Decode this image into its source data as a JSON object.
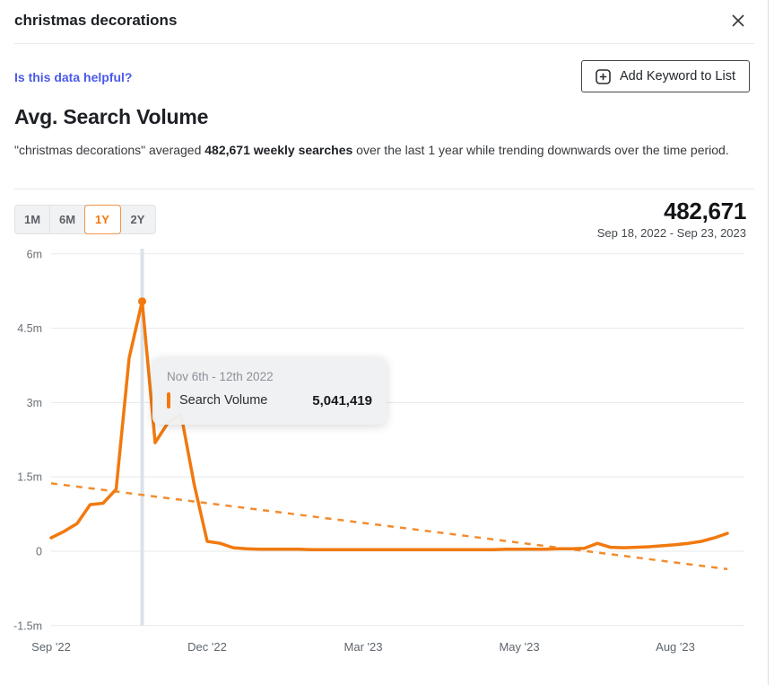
{
  "header": {
    "title": "christmas decorations",
    "close_icon": "✕"
  },
  "toolbar": {
    "helpful_link": "Is this data helpful?",
    "add_keyword_label": "Add Keyword to List"
  },
  "section": {
    "heading": "Avg. Search Volume",
    "desc_pre": "\"christmas decorations\" averaged ",
    "desc_bold": "482,671 weekly searches",
    "desc_post": " over the last 1 year while trending downwards over the time period."
  },
  "controls": {
    "ranges": [
      "1M",
      "6M",
      "1Y",
      "2Y"
    ],
    "selected_range": "1Y",
    "avg_value": "482,671",
    "date_range": "Sep 18, 2022 - Sep 23, 2023"
  },
  "tooltip": {
    "title": "Nov 6th - 12th 2022",
    "series_label": "Search Volume",
    "value": "5,041,419"
  },
  "chart_data": {
    "type": "line",
    "title": "Avg. Search Volume",
    "x_start_label": "Sep 18, 2022",
    "x_end_label": "Sep 23, 2023",
    "series": [
      {
        "name": "Search Volume",
        "unit": "millions of weekly searches",
        "values": [
          0.27,
          0.4,
          0.56,
          0.94,
          0.97,
          1.25,
          3.9,
          5.041419,
          2.19,
          2.6,
          2.75,
          1.35,
          0.2,
          0.16,
          0.07,
          0.05,
          0.04,
          0.04,
          0.04,
          0.04,
          0.03,
          0.03,
          0.03,
          0.03,
          0.03,
          0.03,
          0.03,
          0.03,
          0.03,
          0.03,
          0.03,
          0.03,
          0.03,
          0.03,
          0.03,
          0.04,
          0.04,
          0.04,
          0.04,
          0.05,
          0.05,
          0.06,
          0.16,
          0.08,
          0.07,
          0.08,
          0.09,
          0.11,
          0.13,
          0.16,
          0.2,
          0.27,
          0.36
        ]
      }
    ],
    "trend_line": {
      "style": "dashed",
      "start_value": 1.37,
      "end_value": -0.36
    },
    "hover_index": 7,
    "hover_point": {
      "label": "Nov 6th - 12th 2022",
      "value": 5041419
    },
    "y_ticks": [
      {
        "value": 6,
        "label": "6m"
      },
      {
        "value": 4.5,
        "label": "4.5m"
      },
      {
        "value": 3,
        "label": "3m"
      },
      {
        "value": 1.5,
        "label": "1.5m"
      },
      {
        "value": 0,
        "label": "0"
      },
      {
        "value": -1.5,
        "label": "-1.5m"
      }
    ],
    "x_ticks": [
      {
        "index": 0,
        "label": "Sep '22"
      },
      {
        "index": 12,
        "label": "Dec '22"
      },
      {
        "index": 24,
        "label": "Mar '23"
      },
      {
        "index": 36,
        "label": "May '23"
      },
      {
        "index": 48,
        "label": "Aug '23"
      }
    ],
    "ylim": [
      -1.5,
      6
    ],
    "grid": true,
    "legend": "none",
    "colors": {
      "line": "#f1790e",
      "trend": "#f28c2e",
      "grid": "#e7e8ea",
      "hover_line": "#dbe2e8",
      "axis_label": "#6a7076"
    }
  }
}
